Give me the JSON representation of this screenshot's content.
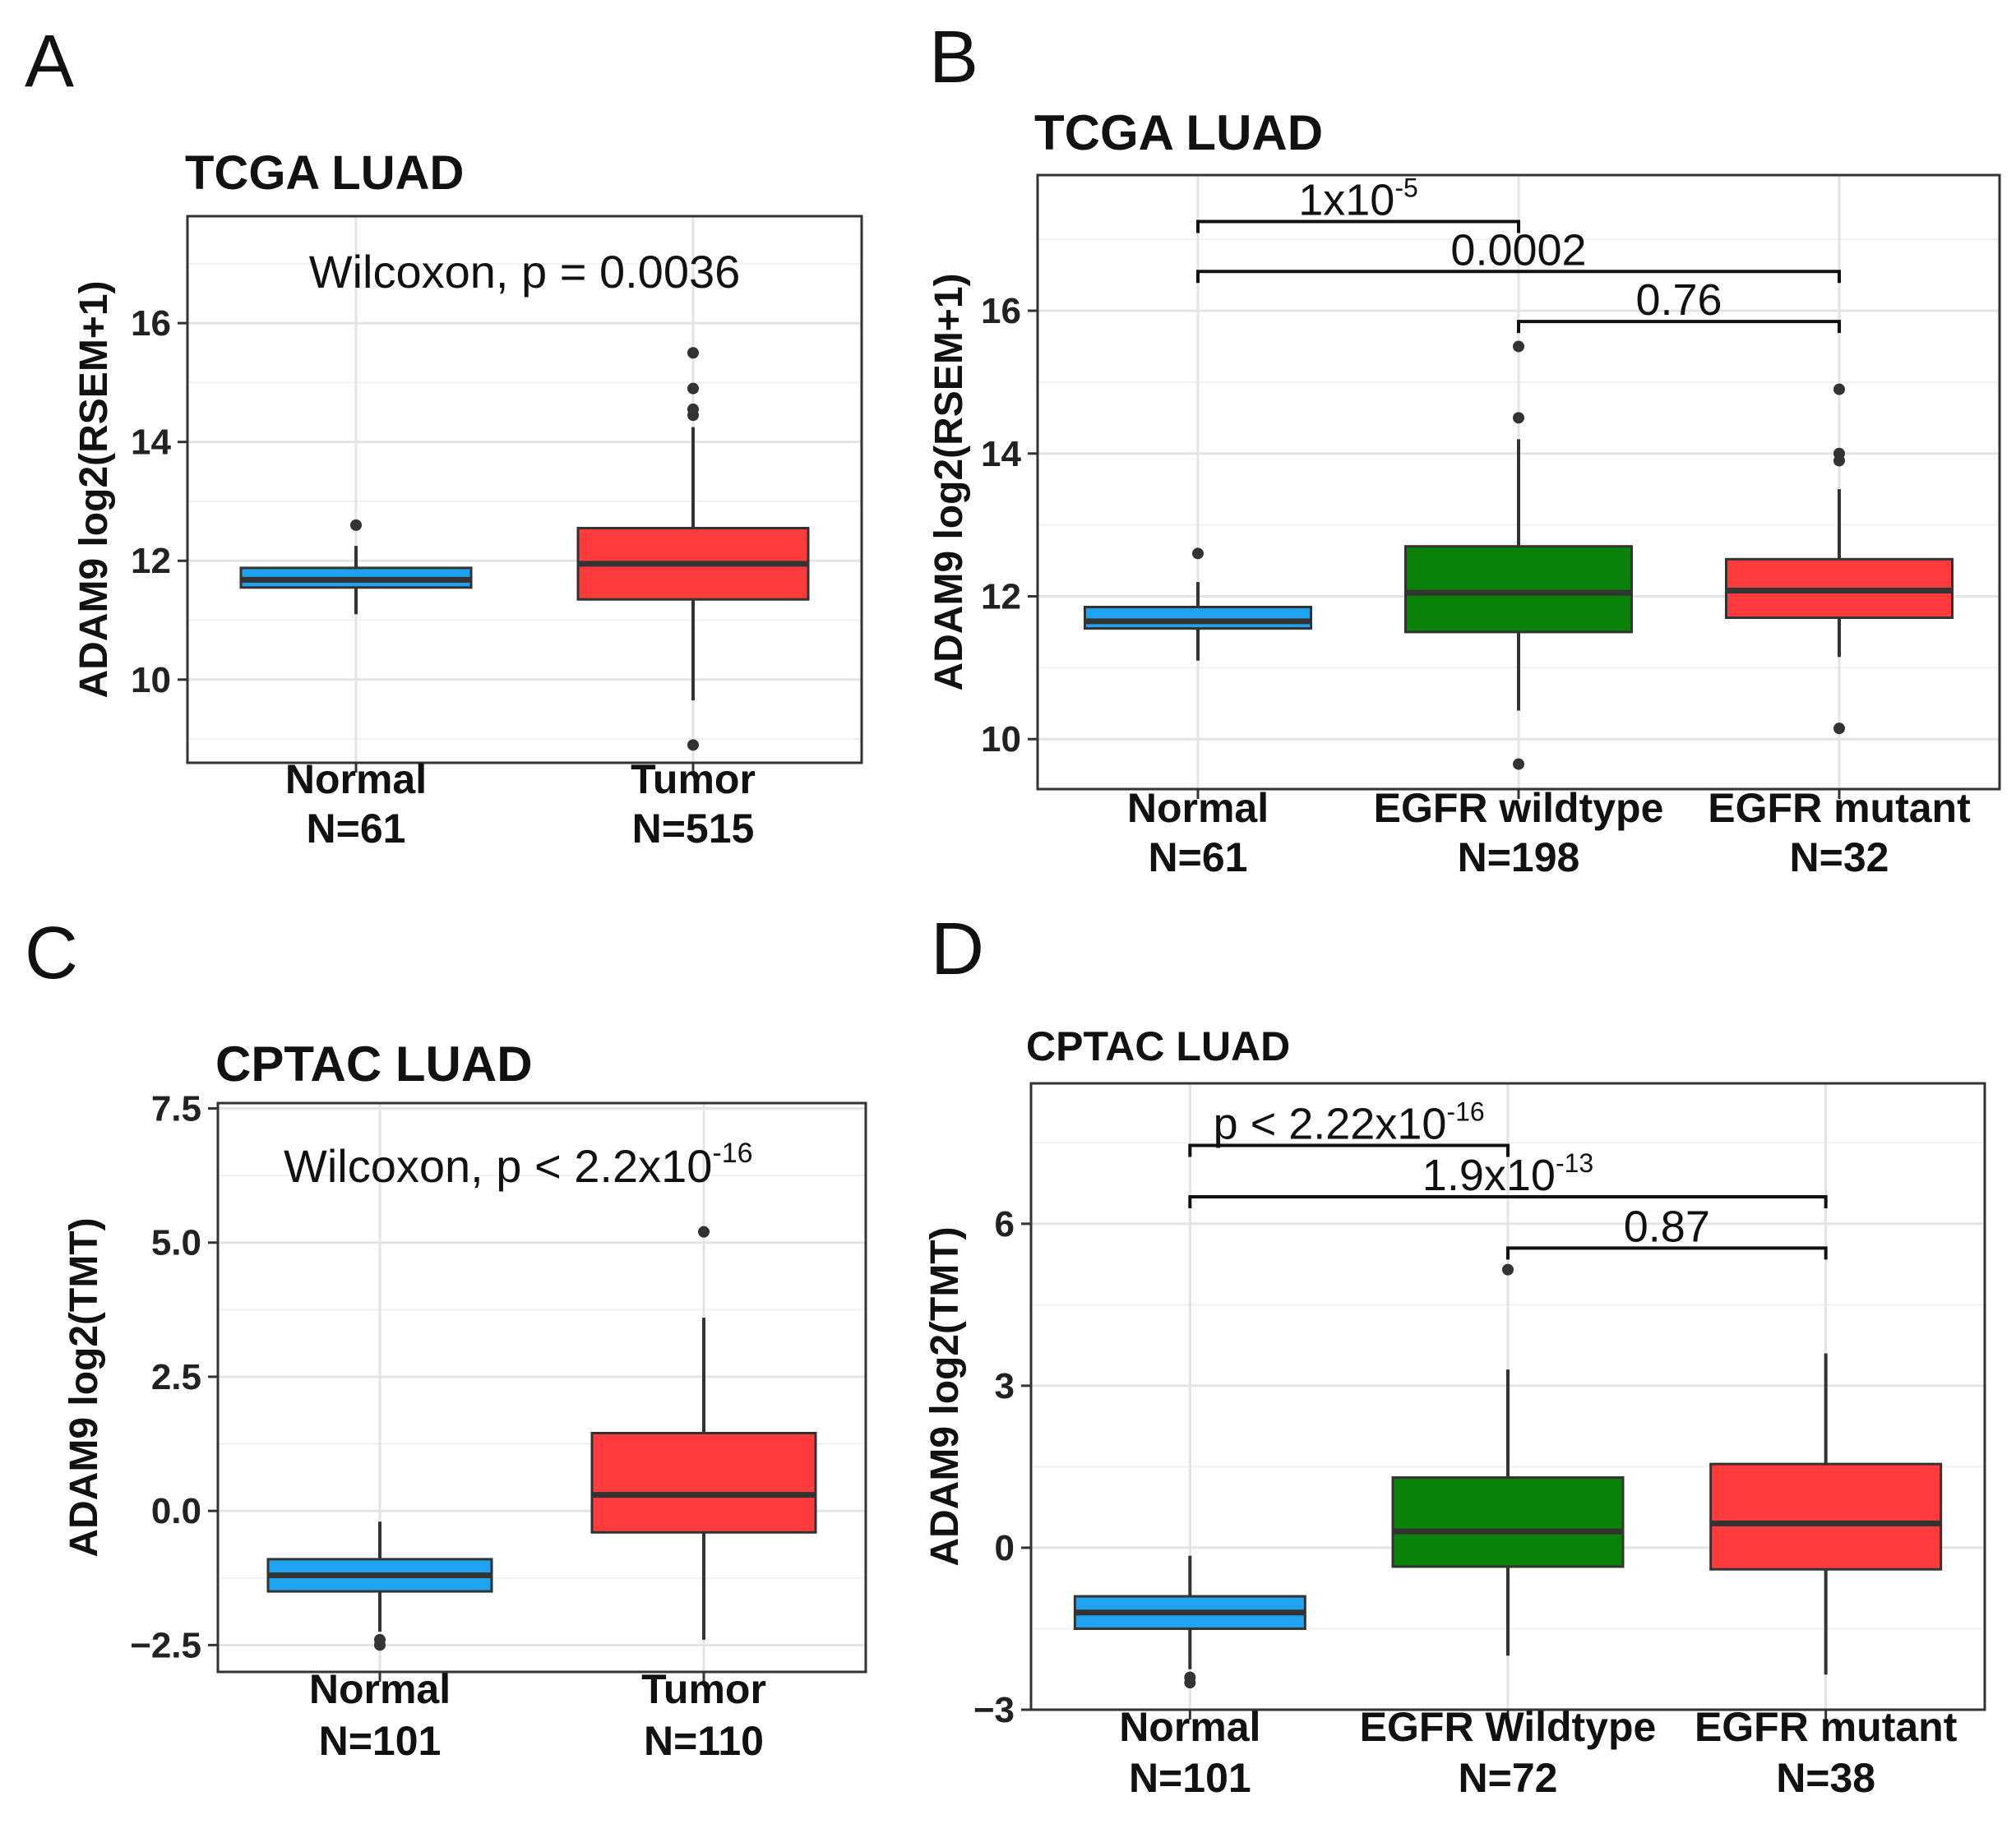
{
  "colors": {
    "Normal": "#1fa3f0",
    "Tumor": "#ff3b3b",
    "EGFR wildtype": "#0a820a",
    "EGFR mutant": "#ff3b3b"
  },
  "chart_data": [
    {
      "letter": "A",
      "type": "boxplot",
      "title": "TCGA LUAD",
      "ylabel": "ADAM9 log2(RSEM+1)",
      "ylim": [
        8.6,
        17.8
      ],
      "yticks": [
        10,
        12,
        14,
        16
      ],
      "ytick_labels": [
        "10",
        "12",
        "14",
        "16"
      ],
      "categories": [
        "Normal\nN=61",
        "Tumor\nN=515"
      ],
      "series_colors": [
        "Normal",
        "Tumor"
      ],
      "boxes": [
        {
          "q1": 11.55,
          "median": 11.68,
          "q3": 11.88,
          "low": 11.1,
          "high": 12.25,
          "outliers": [
            12.6
          ]
        },
        {
          "q1": 11.35,
          "median": 11.95,
          "q3": 12.55,
          "low": 9.65,
          "high": 14.25,
          "outliers": [
            14.45,
            14.55,
            14.9,
            15.5,
            8.9
          ]
        }
      ],
      "annotation": {
        "text": "Wilcoxon, p = 0.0036"
      }
    },
    {
      "letter": "B",
      "type": "boxplot",
      "title": "TCGA LUAD",
      "ylabel": "ADAM9 log2(RSEM+1)",
      "ylim": [
        9.3,
        17.9
      ],
      "yticks": [
        10,
        12,
        14,
        16
      ],
      "ytick_labels": [
        "10",
        "12",
        "14",
        "16"
      ],
      "categories": [
        "Normal\nN=61",
        "EGFR wildtype\nN=198",
        "EGFR mutant\nN=32"
      ],
      "series_colors": [
        "Normal",
        "EGFR wildtype",
        "EGFR mutant"
      ],
      "boxes": [
        {
          "q1": 11.55,
          "median": 11.65,
          "q3": 11.85,
          "low": 11.1,
          "high": 12.2,
          "outliers": [
            12.6
          ]
        },
        {
          "q1": 11.5,
          "median": 12.05,
          "q3": 12.7,
          "low": 10.4,
          "high": 14.2,
          "outliers": [
            14.5,
            15.5,
            9.65
          ]
        },
        {
          "q1": 11.7,
          "median": 12.08,
          "q3": 12.52,
          "low": 11.15,
          "high": 13.5,
          "outliers": [
            13.9,
            14.0,
            14.9,
            10.15
          ]
        }
      ],
      "comparisons": [
        {
          "from": 0,
          "to": 1,
          "y": 17.25,
          "base": "1x10",
          "exp": "-5"
        },
        {
          "from": 0,
          "to": 2,
          "y": 16.55,
          "base": "0.0002",
          "exp": ""
        },
        {
          "from": 1,
          "to": 2,
          "y": 15.85,
          "base": "0.76",
          "exp": ""
        }
      ]
    },
    {
      "letter": "C",
      "type": "boxplot",
      "title": "CPTAC LUAD",
      "ylabel": "ADAM9 log2(TMT)",
      "ylim": [
        -3.0,
        7.6
      ],
      "yticks": [
        -2.5,
        0.0,
        2.5,
        5.0,
        7.5
      ],
      "ytick_labels": [
        "−2.5",
        "0.0",
        "2.5",
        "5.0",
        "7.5"
      ],
      "categories": [
        "Normal\nN=101",
        "Tumor\nN=110"
      ],
      "series_colors": [
        "Normal",
        "Tumor"
      ],
      "boxes": [
        {
          "q1": -1.5,
          "median": -1.2,
          "q3": -0.9,
          "low": -2.25,
          "high": -0.2,
          "outliers": [
            -2.4,
            -2.5
          ]
        },
        {
          "q1": -0.4,
          "median": 0.3,
          "q3": 1.45,
          "low": -2.4,
          "high": 3.6,
          "outliers": [
            5.2
          ]
        }
      ],
      "annotation": {
        "text": "Wilcoxon, p < 2.2x10",
        "exp": "-16"
      }
    },
    {
      "letter": "D",
      "type": "boxplot",
      "title": "CPTAC LUAD",
      "ylabel": "ADAM9 log2(TMT)",
      "ylim": [
        -3.0,
        8.6
      ],
      "yticks": [
        -3,
        0,
        3,
        6
      ],
      "ytick_labels": [
        "−3",
        "0",
        "3",
        "6"
      ],
      "categories": [
        "Normal\nN=101",
        "EGFR Wildtype\nN=72",
        "EGFR mutant\nN=38"
      ],
      "series_colors": [
        "Normal",
        "EGFR wildtype",
        "EGFR mutant"
      ],
      "boxes": [
        {
          "q1": -1.5,
          "median": -1.2,
          "q3": -0.9,
          "low": -2.25,
          "high": -0.15,
          "outliers": [
            -2.4,
            -2.5
          ]
        },
        {
          "q1": -0.35,
          "median": 0.3,
          "q3": 1.3,
          "low": -2.0,
          "high": 3.3,
          "outliers": [
            5.15
          ]
        },
        {
          "q1": -0.4,
          "median": 0.45,
          "q3": 1.55,
          "low": -2.35,
          "high": 3.6,
          "outliers": []
        }
      ],
      "comparisons": [
        {
          "from": 0,
          "to": 1,
          "y": 7.45,
          "base": "p < 2.22x10",
          "exp": "-16"
        },
        {
          "from": 0,
          "to": 2,
          "y": 6.5,
          "base": "1.9x10",
          "exp": "-13"
        },
        {
          "from": 1,
          "to": 2,
          "y": 5.55,
          "base": "0.87",
          "exp": ""
        }
      ]
    }
  ]
}
